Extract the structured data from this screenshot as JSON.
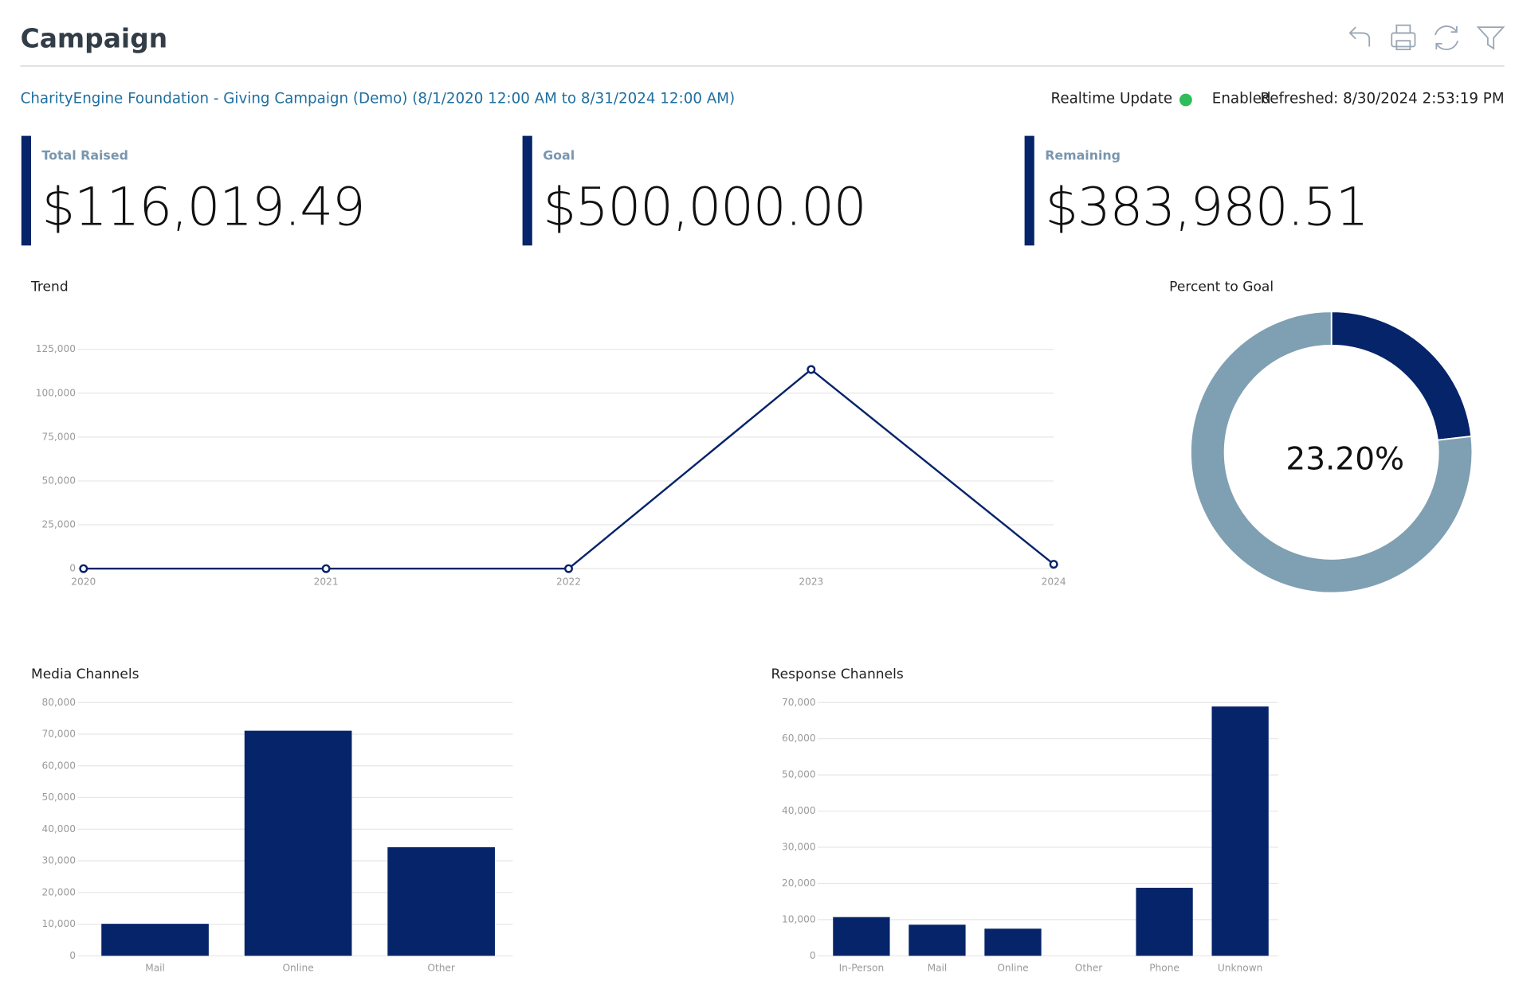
{
  "header": {
    "title": "Campaign",
    "campaign_link": "CharityEngine Foundation - Giving Campaign (Demo) (8/1/2020 12:00 AM to 8/31/2024 12:00 AM)",
    "realtime_label": "Realtime Update",
    "realtime_status": "Enabled",
    "refreshed": "Refreshed: 8/30/2024 2:53:19 PM"
  },
  "kpis": [
    {
      "label": "Total Raised",
      "value": "$116,019.49"
    },
    {
      "label": "Goal",
      "value": "$500,000.00"
    },
    {
      "label": "Remaining",
      "value": "$383,980.51"
    }
  ],
  "chart_data": [
    {
      "type": "line",
      "title": "Trend",
      "categories": [
        "2020",
        "2021",
        "2022",
        "2023",
        "2024"
      ],
      "values": [
        0,
        0,
        0,
        113500,
        2500
      ],
      "color": "#062469",
      "ylim": [
        0,
        125000
      ],
      "yticks": [
        0,
        {
          "value": 25000,
          "label": "25,000"
        },
        {
          "value": 50000,
          "label": "50,000"
        },
        {
          "value": 75000,
          "label": "75,000"
        },
        {
          "value": 100000,
          "label": "100,000"
        },
        {
          "value": 125000,
          "label": "125,000"
        }
      ],
      "grid": true
    },
    {
      "type": "pie",
      "title": "Percent to Goal",
      "values": [
        23.2,
        76.8
      ],
      "value_labels": [
        "23.20%",
        null
      ],
      "colors": [
        "#062469",
        "#7f9fb2"
      ],
      "donut": true
    },
    {
      "type": "bar",
      "title": "Media Channels",
      "categories": [
        "Mail",
        "Online",
        "Other"
      ],
      "values": [
        10100,
        71100,
        34300
      ],
      "color": "#062469",
      "ylim": [
        0,
        80000
      ],
      "yticks": [
        0,
        {
          "value": 10000,
          "label": "10,000"
        },
        {
          "value": 20000,
          "label": "20,000"
        },
        {
          "value": 30000,
          "label": "30,000"
        },
        {
          "value": 40000,
          "label": "40,000"
        },
        {
          "value": 50000,
          "label": "50,000"
        },
        {
          "value": 60000,
          "label": "60,000"
        },
        {
          "value": 70000,
          "label": "70,000"
        },
        {
          "value": 80000,
          "label": "80,000"
        }
      ],
      "grid": true
    },
    {
      "type": "bar",
      "title": "Response Channels",
      "categories": [
        "In-Person",
        "Mail",
        "Online",
        "Other",
        "Phone",
        "Unknown"
      ],
      "values": [
        10700,
        8600,
        7500,
        0,
        18800,
        68900
      ],
      "color": "#062469",
      "ylim": [
        0,
        70000
      ],
      "yticks": [
        0,
        {
          "value": 10000,
          "label": "10,000"
        },
        {
          "value": 20000,
          "label": "20,000"
        },
        {
          "value": 30000,
          "label": "30,000"
        },
        {
          "value": 40000,
          "label": "40,000"
        },
        {
          "value": 50000,
          "label": "50,000"
        },
        {
          "value": 60000,
          "label": "60,000"
        },
        {
          "value": 70000,
          "label": "70,000"
        }
      ],
      "grid": true
    }
  ]
}
